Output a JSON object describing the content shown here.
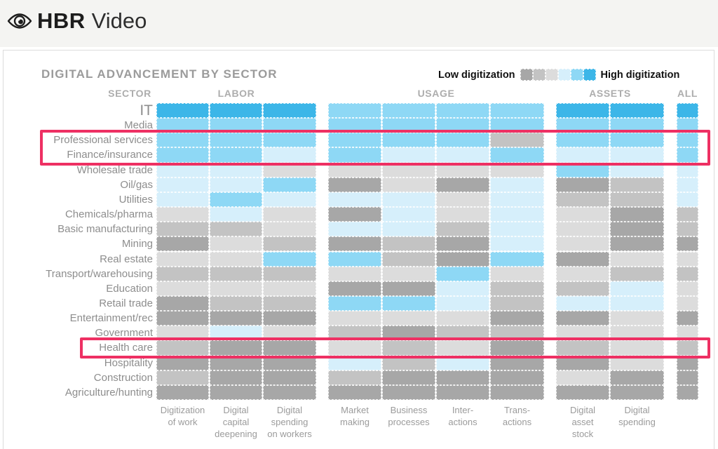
{
  "header": {
    "brand_bold": "HBR",
    "brand_light": "Video"
  },
  "legend": {
    "low_label": "Low digitization",
    "high_label": "High digitization"
  },
  "chart_data": {
    "type": "heatmap",
    "title": "DIGITAL ADVANCEMENT BY SECTOR",
    "row_axis_label": "SECTOR",
    "scale_note": "Cell values are digitization levels 1-6: 1=dark gray (lowest), 2=medium gray, 3=light gray, 4=pale blue, 5=sky blue, 6=bright blue (highest)",
    "palette": {
      "1": "#a7a7a7",
      "2": "#c3c3c3",
      "3": "#dcdcdc",
      "4": "#d6effb",
      "5": "#8ed8f5",
      "6": "#3cb6e8"
    },
    "highlight_color": "#ee3063",
    "column_groups": [
      {
        "label": "LABOR",
        "columns": [
          {
            "label": "Digitization of work",
            "label_lines": [
              "Digitization",
              "of work"
            ]
          },
          {
            "label": "Digital capital deepening",
            "label_lines": [
              "Digital",
              "capital",
              "deepening"
            ]
          },
          {
            "label": "Digital spending on workers",
            "label_lines": [
              "Digital",
              "spending",
              "on workers"
            ]
          }
        ]
      },
      {
        "label": "USAGE",
        "columns": [
          {
            "label": "Market making",
            "label_lines": [
              "Market",
              "making"
            ]
          },
          {
            "label": "Business processes",
            "label_lines": [
              "Business",
              "processes"
            ]
          },
          {
            "label": "Inter-actions",
            "label_lines": [
              "Inter-",
              "actions"
            ]
          },
          {
            "label": "Trans-actions",
            "label_lines": [
              "Trans-",
              "actions"
            ]
          }
        ]
      },
      {
        "label": "ASSETS",
        "columns": [
          {
            "label": "Digital asset stock",
            "label_lines": [
              "Digital",
              "asset",
              "stock"
            ]
          },
          {
            "label": "Digital spending",
            "label_lines": [
              "Digital",
              "spending"
            ]
          }
        ]
      },
      {
        "label": "ALL",
        "columns": [
          {
            "label": "",
            "label_lines": []
          }
        ]
      }
    ],
    "rows": [
      {
        "sector": "IT",
        "large_label": true,
        "labor": [
          6,
          6,
          6
        ],
        "usage": [
          5,
          5,
          5,
          5
        ],
        "assets": [
          6,
          6
        ],
        "all": 6
      },
      {
        "sector": "Media",
        "labor": [
          5,
          5,
          5
        ],
        "usage": [
          5,
          5,
          5,
          5
        ],
        "assets": [
          5,
          5
        ],
        "all": 5
      },
      {
        "sector": "Professional services",
        "labor": [
          5,
          5,
          5
        ],
        "usage": [
          5,
          5,
          5,
          2
        ],
        "assets": [
          5,
          5
        ],
        "all": 5
      },
      {
        "sector": "Finance/insurance",
        "labor": [
          5,
          5,
          4
        ],
        "usage": [
          5,
          4,
          4,
          5
        ],
        "assets": [
          4,
          4
        ],
        "all": 5
      },
      {
        "sector": "Wholesale trade",
        "labor": [
          4,
          4,
          3
        ],
        "usage": [
          3,
          3,
          3,
          3
        ],
        "assets": [
          5,
          4
        ],
        "all": 4
      },
      {
        "sector": "Oil/gas",
        "labor": [
          4,
          4,
          5
        ],
        "usage": [
          1,
          3,
          1,
          4
        ],
        "assets": [
          1,
          2
        ],
        "all": 4
      },
      {
        "sector": "Utilities",
        "labor": [
          4,
          5,
          4
        ],
        "usage": [
          4,
          4,
          3,
          4
        ],
        "assets": [
          2,
          2
        ],
        "all": 4
      },
      {
        "sector": "Chemicals/pharma",
        "labor": [
          3,
          4,
          3
        ],
        "usage": [
          1,
          4,
          3,
          4
        ],
        "assets": [
          3,
          1
        ],
        "all": 2
      },
      {
        "sector": "Basic manufacturing",
        "labor": [
          2,
          2,
          3
        ],
        "usage": [
          4,
          4,
          2,
          4
        ],
        "assets": [
          3,
          1
        ],
        "all": 2
      },
      {
        "sector": "Mining",
        "labor": [
          1,
          3,
          2
        ],
        "usage": [
          1,
          2,
          1,
          4
        ],
        "assets": [
          3,
          1
        ],
        "all": 1
      },
      {
        "sector": "Real estate",
        "labor": [
          3,
          3,
          5
        ],
        "usage": [
          5,
          2,
          1,
          5
        ],
        "assets": [
          1,
          3
        ],
        "all": 3
      },
      {
        "sector": "Transport/warehousing",
        "labor": [
          2,
          2,
          2
        ],
        "usage": [
          3,
          3,
          5,
          3
        ],
        "assets": [
          3,
          2
        ],
        "all": 2
      },
      {
        "sector": "Education",
        "labor": [
          3,
          3,
          3
        ],
        "usage": [
          1,
          1,
          4,
          2
        ],
        "assets": [
          2,
          4
        ],
        "all": 3
      },
      {
        "sector": "Retail trade",
        "labor": [
          1,
          2,
          2
        ],
        "usage": [
          5,
          5,
          4,
          2
        ],
        "assets": [
          4,
          4
        ],
        "all": 3
      },
      {
        "sector": "Entertainment/rec",
        "labor": [
          1,
          1,
          1
        ],
        "usage": [
          3,
          3,
          3,
          1
        ],
        "assets": [
          1,
          3
        ],
        "all": 1
      },
      {
        "sector": "Government",
        "labor": [
          3,
          4,
          3
        ],
        "usage": [
          2,
          1,
          2,
          2
        ],
        "assets": [
          3,
          3
        ],
        "all": 3
      },
      {
        "sector": "Health care",
        "labor": [
          2,
          1,
          1
        ],
        "usage": [
          3,
          2,
          3,
          1
        ],
        "assets": [
          2,
          3
        ],
        "all": 2
      },
      {
        "sector": "Hospitality",
        "labor": [
          1,
          1,
          1
        ],
        "usage": [
          4,
          2,
          4,
          1
        ],
        "assets": [
          1,
          3
        ],
        "all": 1
      },
      {
        "sector": "Construction",
        "labor": [
          2,
          1,
          1
        ],
        "usage": [
          2,
          1,
          1,
          1
        ],
        "assets": [
          3,
          1
        ],
        "all": 1
      },
      {
        "sector": "Agriculture/hunting",
        "labor": [
          1,
          1,
          1
        ],
        "usage": [
          1,
          1,
          1,
          1
        ],
        "assets": [
          1,
          1
        ],
        "all": 1
      }
    ],
    "annotations": [
      {
        "id": "box-professional-finance",
        "sectors": [
          "Professional services",
          "Finance/insurance"
        ]
      },
      {
        "id": "box-health-care",
        "sectors": [
          "Health care"
        ]
      }
    ]
  }
}
